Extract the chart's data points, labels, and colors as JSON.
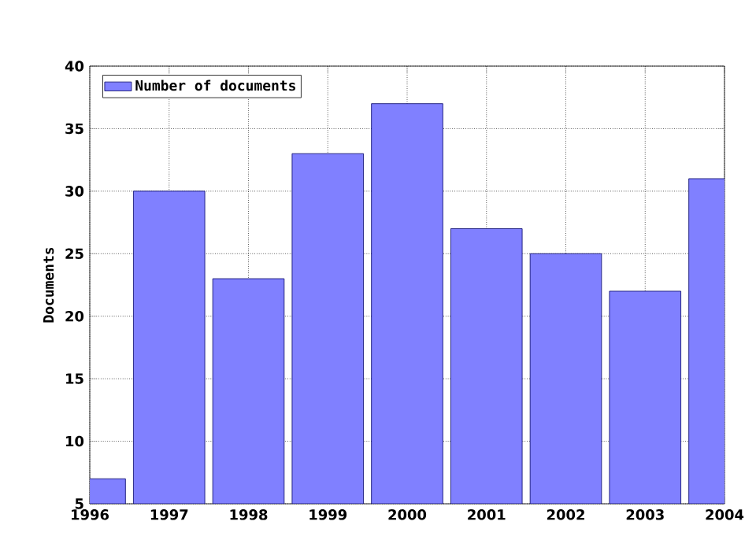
{
  "chart_data": {
    "type": "bar",
    "ylabel": "Documents",
    "x": [
      1996,
      1997,
      1998,
      1999,
      2000,
      2001,
      2002,
      2003,
      2004
    ],
    "series": [
      {
        "name": "Number of documents",
        "color": "#8080ff",
        "values": [
          7,
          30,
          23,
          33,
          37,
          27,
          25,
          22,
          31
        ]
      }
    ],
    "xlim": [
      1996,
      2004
    ],
    "xticks": [
      1996,
      1997,
      1998,
      1999,
      2000,
      2001,
      2002,
      2003,
      2004
    ],
    "ylim": [
      5,
      40
    ],
    "yticks": [
      5,
      10,
      15,
      20,
      25,
      30,
      35,
      40
    ],
    "grid": true,
    "legend": "top left"
  }
}
